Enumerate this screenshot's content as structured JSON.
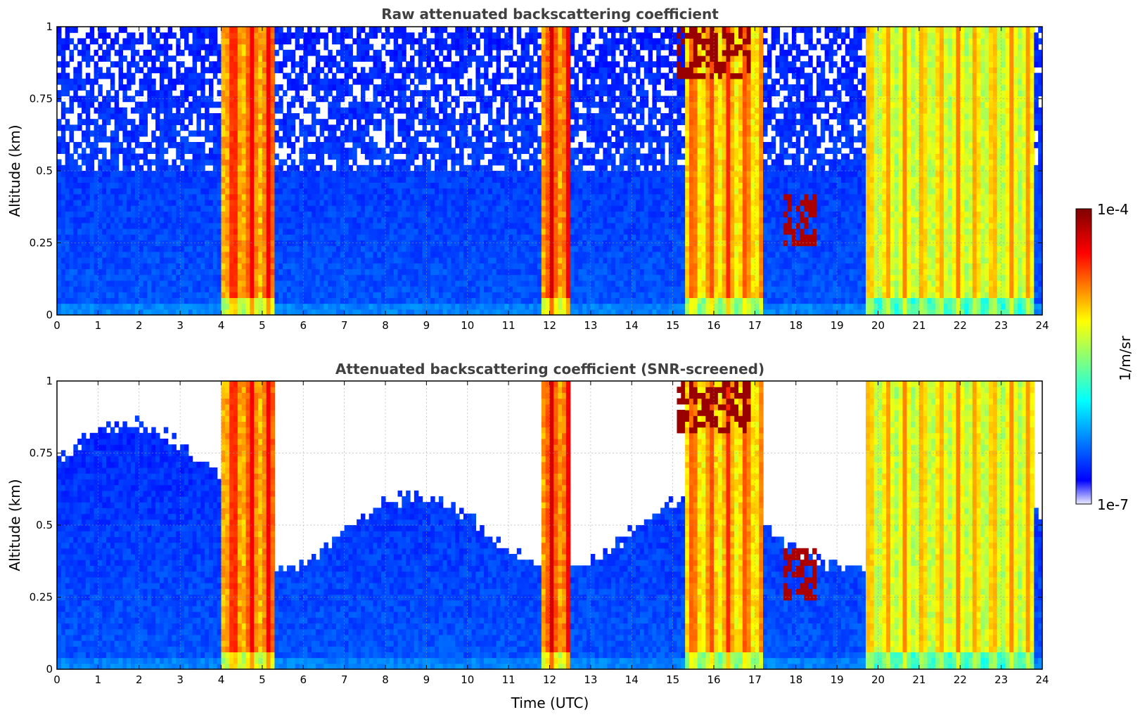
{
  "chart_data": [
    {
      "type": "heatmap",
      "title": "Raw attenuated backscattering coefficient",
      "xlabel": "",
      "ylabel": "Altitude (km)",
      "xlim": [
        0,
        24
      ],
      "ylim": [
        0,
        1
      ],
      "xticks": [
        "0",
        "1",
        "2",
        "3",
        "4",
        "5",
        "6",
        "7",
        "8",
        "9",
        "10",
        "11",
        "12",
        "13",
        "14",
        "15",
        "16",
        "17",
        "18",
        "19",
        "20",
        "21",
        "22",
        "23",
        "24"
      ],
      "yticks": [
        "0",
        "0.25",
        "0.5",
        "0.75",
        "1"
      ],
      "grid": true,
      "screened": false,
      "cloud_segments": [
        {
          "t0": 4.05,
          "t1": 5.25,
          "level": 0.88
        },
        {
          "t0": 11.85,
          "t1": 12.45,
          "level": 0.9
        },
        {
          "t0": 15.3,
          "t1": 17.15,
          "level": 0.82
        },
        {
          "t0": 19.75,
          "t1": 23.8,
          "level": 0.74
        }
      ],
      "features": [
        {
          "t0": 17.7,
          "t1": 18.5,
          "alt0": 0.25,
          "alt1": 0.42,
          "level": 0.95
        },
        {
          "t0": 15.1,
          "t1": 16.9,
          "alt0": 0.82,
          "alt1": 1.0,
          "level": 0.97
        }
      ]
    },
    {
      "type": "heatmap",
      "title": "Attenuated backscattering coefficient (SNR-screened)",
      "xlabel": "Time (UTC)",
      "ylabel": "Altitude (km)",
      "xlim": [
        0,
        24
      ],
      "ylim": [
        0,
        1
      ],
      "xticks": [
        "0",
        "1",
        "2",
        "3",
        "4",
        "5",
        "6",
        "7",
        "8",
        "9",
        "10",
        "11",
        "12",
        "13",
        "14",
        "15",
        "16",
        "17",
        "18",
        "19",
        "20",
        "21",
        "22",
        "23",
        "24"
      ],
      "yticks": [
        "0",
        "0.25",
        "0.5",
        "0.75",
        "1"
      ],
      "grid": true,
      "screened": true,
      "cloud_segments": [
        {
          "t0": 4.05,
          "t1": 5.25,
          "level": 0.88
        },
        {
          "t0": 11.85,
          "t1": 12.45,
          "level": 0.9
        },
        {
          "t0": 15.3,
          "t1": 17.15,
          "level": 0.82
        },
        {
          "t0": 19.75,
          "t1": 23.8,
          "level": 0.74
        }
      ],
      "features": [
        {
          "t0": 17.7,
          "t1": 18.5,
          "alt0": 0.25,
          "alt1": 0.42,
          "level": 0.95
        },
        {
          "t0": 15.1,
          "t1": 16.9,
          "alt0": 0.82,
          "alt1": 1.0,
          "level": 0.97
        }
      ]
    }
  ],
  "colorbar": {
    "label": "1/m/sr",
    "max_label": "1e-4",
    "min_label": "1e-7",
    "colormap": "jet",
    "colors": [
      "#ececff",
      "#0000ff",
      "#00ffff",
      "#ffff00",
      "#ff0000",
      "#800000"
    ]
  }
}
